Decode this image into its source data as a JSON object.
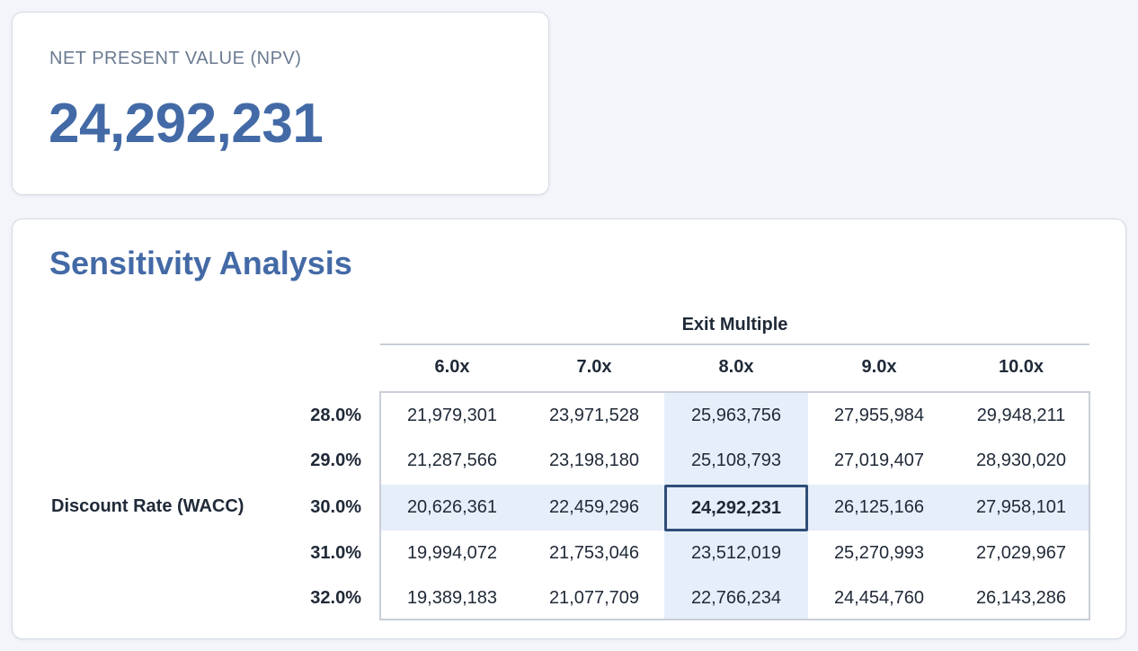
{
  "npv": {
    "label": "NET PRESENT VALUE (NPV)",
    "value": "24,292,231"
  },
  "sensitivity": {
    "title": "Sensitivity Analysis",
    "column_axis_label": "Exit Multiple",
    "row_axis_label": "Discount Rate (WACC)",
    "columns": [
      "6.0x",
      "7.0x",
      "8.0x",
      "9.0x",
      "10.0x"
    ],
    "rows": [
      {
        "label": "28.0%",
        "values": [
          "21,979,301",
          "23,971,528",
          "25,963,756",
          "27,955,984",
          "29,948,211"
        ]
      },
      {
        "label": "29.0%",
        "values": [
          "21,287,566",
          "23,198,180",
          "25,108,793",
          "27,019,407",
          "28,930,020"
        ]
      },
      {
        "label": "30.0%",
        "values": [
          "20,626,361",
          "22,459,296",
          "24,292,231",
          "26,125,166",
          "27,958,101"
        ]
      },
      {
        "label": "31.0%",
        "values": [
          "19,994,072",
          "21,753,046",
          "23,512,019",
          "25,270,993",
          "27,029,967"
        ]
      },
      {
        "label": "32.0%",
        "values": [
          "19,389,183",
          "21,077,709",
          "22,766,234",
          "24,454,760",
          "26,143,286"
        ]
      }
    ],
    "base_case": {
      "row": "30.0%",
      "column": "8.0x"
    }
  },
  "colors": {
    "accent": "#436aa6",
    "highlight": "#e6eef9",
    "base_border": "#2f4d78",
    "background": "#f3f5fa"
  }
}
